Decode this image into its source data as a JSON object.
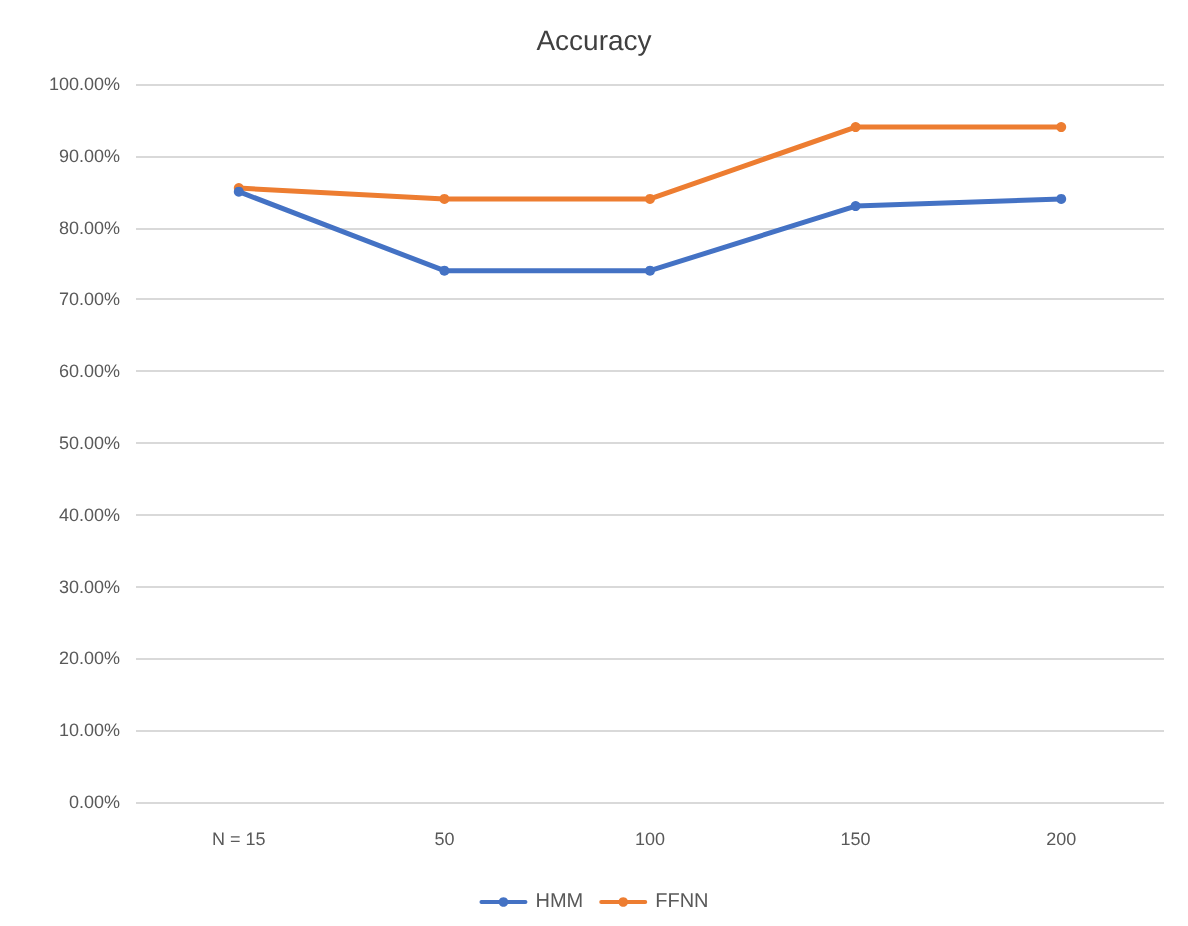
{
  "chart_data": {
    "type": "line",
    "title": "Accuracy",
    "categories": [
      "N = 15",
      "50",
      "100",
      "150",
      "200"
    ],
    "series": [
      {
        "name": "HMM",
        "color": "#4472c4",
        "values": [
          85,
          74,
          74,
          83,
          84
        ]
      },
      {
        "name": "FFNN",
        "color": "#ed7d31",
        "values": [
          85.5,
          84,
          84,
          94,
          94
        ]
      }
    ],
    "ylim": [
      0,
      100
    ],
    "yticks": [
      {
        "value": 0,
        "label": "0.00%"
      },
      {
        "value": 10,
        "label": "10.00%"
      },
      {
        "value": 20,
        "label": "20.00%"
      },
      {
        "value": 30,
        "label": "30.00%"
      },
      {
        "value": 40,
        "label": "40.00%"
      },
      {
        "value": 50,
        "label": "50.00%"
      },
      {
        "value": 60,
        "label": "60.00%"
      },
      {
        "value": 70,
        "label": "70.00%"
      },
      {
        "value": 80,
        "label": "80.00%"
      },
      {
        "value": 90,
        "label": "90.00%"
      },
      {
        "value": 100,
        "label": "100.00%"
      }
    ],
    "grid": "y",
    "legend": "bottom",
    "marker": "circle",
    "line_style": "solid"
  }
}
